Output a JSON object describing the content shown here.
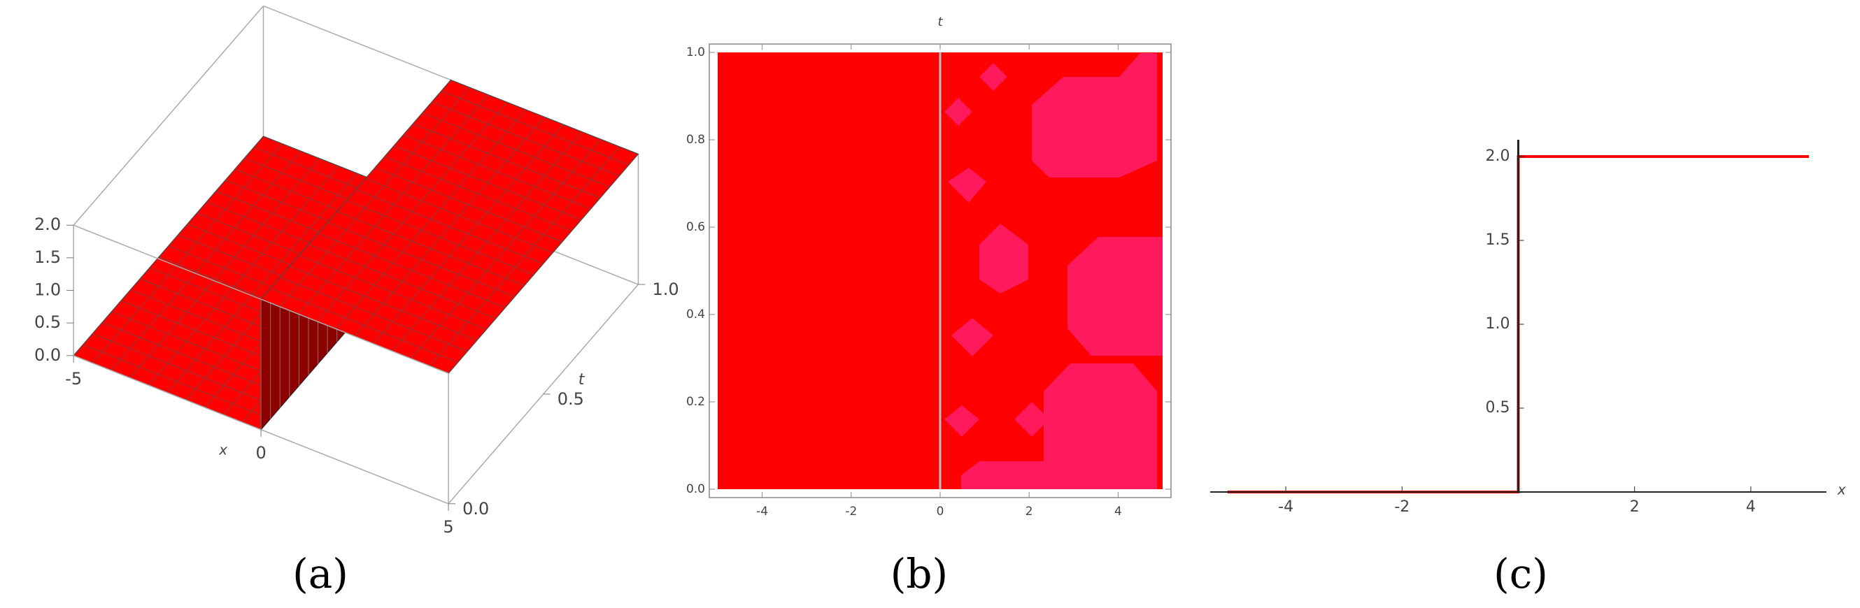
{
  "chart_data": [
    {
      "type": "surface3d",
      "caption": "(a)",
      "x_label": "x",
      "y_label": "t",
      "x": [
        -5,
        0,
        0,
        5
      ],
      "values": [
        0,
        0,
        2,
        2
      ],
      "color": "#ff0000",
      "xlim": [
        -5,
        5
      ],
      "xticks": [
        -5,
        0,
        5
      ],
      "ylim": [
        0,
        1
      ],
      "yticks": [
        {
          "value": 0,
          "label": "0.0"
        },
        0.5,
        {
          "value": 1,
          "label": "1.0"
        }
      ],
      "zlim": [
        0,
        2
      ],
      "zticks": [
        {
          "value": 0,
          "label": "0.0"
        },
        0.5,
        {
          "value": 1,
          "label": "1.0"
        },
        1.5,
        {
          "value": 2,
          "label": "2.0"
        }
      ]
    },
    {
      "type": "density",
      "caption": "(b)",
      "y_label": "t",
      "color": "#ff0000",
      "noise_color": "#ff1a5e",
      "boundary": 0,
      "xlim": [
        -5,
        5
      ],
      "xticks": [
        -4,
        -2,
        0,
        2,
        4
      ],
      "ylim": [
        0,
        1
      ],
      "yticks": [
        {
          "value": 0,
          "label": "0.0"
        },
        {
          "value": 0.2,
          "label": "0.2"
        },
        {
          "value": 0.4,
          "label": "0.4"
        },
        {
          "value": 0.6,
          "label": "0.6"
        },
        {
          "value": 0.8,
          "label": "0.8"
        },
        {
          "value": 1,
          "label": "1.0"
        }
      ]
    },
    {
      "type": "line",
      "caption": "(c)",
      "x_label": "x",
      "x": [
        -5,
        0,
        0,
        5
      ],
      "values": [
        0,
        0,
        2,
        2
      ],
      "color": "#ff0000",
      "xlim": [
        -5.3,
        5.3
      ],
      "xticks": [
        -4,
        -2,
        2,
        4
      ],
      "ylim": [
        0,
        2.1
      ],
      "yticks": [
        0.5,
        {
          "value": 1,
          "label": "1.0"
        },
        1.5,
        {
          "value": 2,
          "label": "2.0"
        }
      ]
    }
  ]
}
